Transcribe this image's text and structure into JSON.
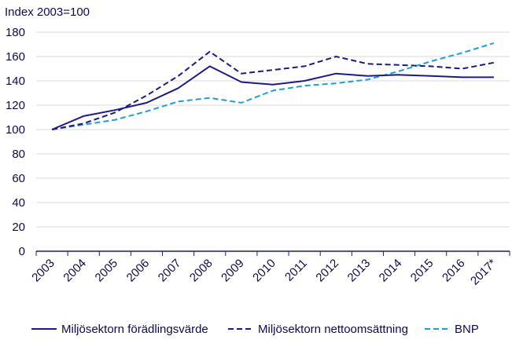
{
  "chart_data": {
    "type": "line",
    "unit_label": "Index 2003=100",
    "categories": [
      "2003",
      "2004",
      "2005",
      "2006",
      "2007",
      "2008",
      "2009",
      "2010",
      "2011",
      "2012",
      "2013",
      "2014",
      "2015",
      "2016",
      "2017*"
    ],
    "ylim": [
      0,
      180
    ],
    "yticks": [
      0,
      20,
      40,
      60,
      80,
      100,
      120,
      140,
      160,
      180
    ],
    "grid": "horizontal",
    "legend_position": "bottom",
    "series": [
      {
        "name": "Miljösektorn förädlingsvärde",
        "color": "#1a1a8c",
        "style": "solid",
        "values": [
          100,
          111,
          116,
          122,
          134,
          152,
          139,
          137,
          140,
          146,
          144,
          145,
          144,
          143,
          143
        ]
      },
      {
        "name": "Miljösektorn nettoomsättning",
        "color": "#1a1a8c",
        "style": "dashed",
        "values": [
          100,
          105,
          114,
          128,
          144,
          164,
          146,
          149,
          152,
          160,
          154,
          153,
          152,
          150,
          155
        ]
      },
      {
        "name": "BNP",
        "color": "#1aa0e0",
        "style": "dashed",
        "values": [
          100,
          104,
          108,
          115,
          123,
          126,
          122,
          132,
          136,
          138,
          141,
          148,
          156,
          163,
          171
        ]
      }
    ]
  }
}
